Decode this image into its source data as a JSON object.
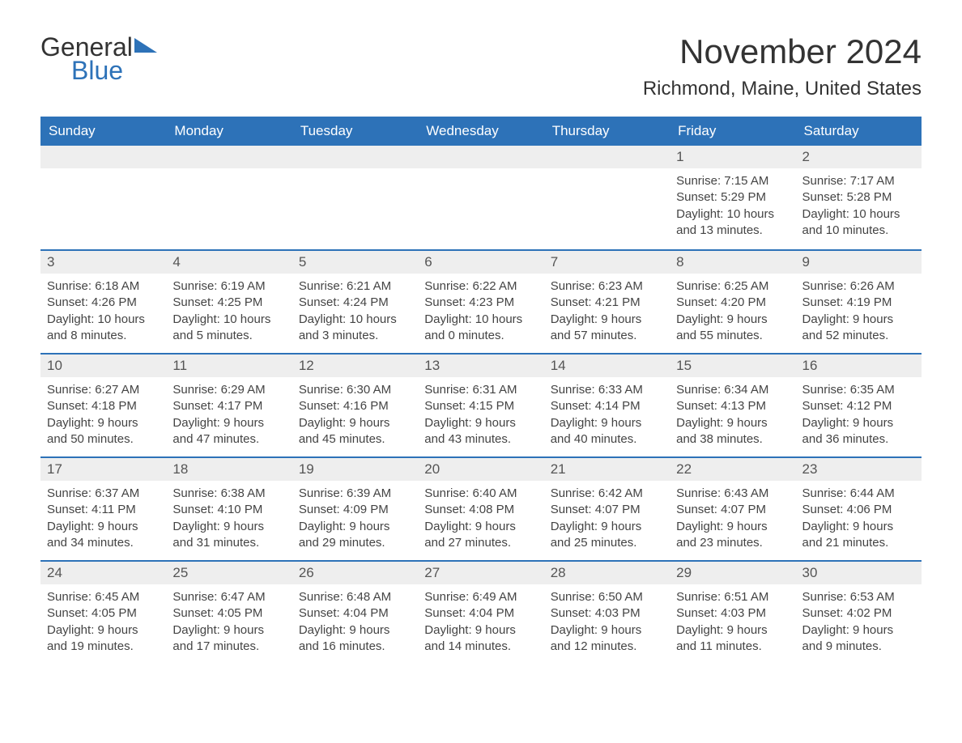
{
  "logo": {
    "text_general": "General",
    "text_blue": "Blue"
  },
  "title": "November 2024",
  "location": "Richmond, Maine, United States",
  "colors": {
    "header_bg": "#2d72b8",
    "header_text": "#ffffff",
    "day_number_bg": "#eeeeee",
    "border": "#2d72b8",
    "text": "#333333"
  },
  "day_headers": [
    "Sunday",
    "Monday",
    "Tuesday",
    "Wednesday",
    "Thursday",
    "Friday",
    "Saturday"
  ],
  "weeks": [
    [
      {
        "day": "",
        "sunrise": "",
        "sunset": "",
        "daylight1": "",
        "daylight2": ""
      },
      {
        "day": "",
        "sunrise": "",
        "sunset": "",
        "daylight1": "",
        "daylight2": ""
      },
      {
        "day": "",
        "sunrise": "",
        "sunset": "",
        "daylight1": "",
        "daylight2": ""
      },
      {
        "day": "",
        "sunrise": "",
        "sunset": "",
        "daylight1": "",
        "daylight2": ""
      },
      {
        "day": "",
        "sunrise": "",
        "sunset": "",
        "daylight1": "",
        "daylight2": ""
      },
      {
        "day": "1",
        "sunrise": "Sunrise: 7:15 AM",
        "sunset": "Sunset: 5:29 PM",
        "daylight1": "Daylight: 10 hours",
        "daylight2": "and 13 minutes."
      },
      {
        "day": "2",
        "sunrise": "Sunrise: 7:17 AM",
        "sunset": "Sunset: 5:28 PM",
        "daylight1": "Daylight: 10 hours",
        "daylight2": "and 10 minutes."
      }
    ],
    [
      {
        "day": "3",
        "sunrise": "Sunrise: 6:18 AM",
        "sunset": "Sunset: 4:26 PM",
        "daylight1": "Daylight: 10 hours",
        "daylight2": "and 8 minutes."
      },
      {
        "day": "4",
        "sunrise": "Sunrise: 6:19 AM",
        "sunset": "Sunset: 4:25 PM",
        "daylight1": "Daylight: 10 hours",
        "daylight2": "and 5 minutes."
      },
      {
        "day": "5",
        "sunrise": "Sunrise: 6:21 AM",
        "sunset": "Sunset: 4:24 PM",
        "daylight1": "Daylight: 10 hours",
        "daylight2": "and 3 minutes."
      },
      {
        "day": "6",
        "sunrise": "Sunrise: 6:22 AM",
        "sunset": "Sunset: 4:23 PM",
        "daylight1": "Daylight: 10 hours",
        "daylight2": "and 0 minutes."
      },
      {
        "day": "7",
        "sunrise": "Sunrise: 6:23 AM",
        "sunset": "Sunset: 4:21 PM",
        "daylight1": "Daylight: 9 hours",
        "daylight2": "and 57 minutes."
      },
      {
        "day": "8",
        "sunrise": "Sunrise: 6:25 AM",
        "sunset": "Sunset: 4:20 PM",
        "daylight1": "Daylight: 9 hours",
        "daylight2": "and 55 minutes."
      },
      {
        "day": "9",
        "sunrise": "Sunrise: 6:26 AM",
        "sunset": "Sunset: 4:19 PM",
        "daylight1": "Daylight: 9 hours",
        "daylight2": "and 52 minutes."
      }
    ],
    [
      {
        "day": "10",
        "sunrise": "Sunrise: 6:27 AM",
        "sunset": "Sunset: 4:18 PM",
        "daylight1": "Daylight: 9 hours",
        "daylight2": "and 50 minutes."
      },
      {
        "day": "11",
        "sunrise": "Sunrise: 6:29 AM",
        "sunset": "Sunset: 4:17 PM",
        "daylight1": "Daylight: 9 hours",
        "daylight2": "and 47 minutes."
      },
      {
        "day": "12",
        "sunrise": "Sunrise: 6:30 AM",
        "sunset": "Sunset: 4:16 PM",
        "daylight1": "Daylight: 9 hours",
        "daylight2": "and 45 minutes."
      },
      {
        "day": "13",
        "sunrise": "Sunrise: 6:31 AM",
        "sunset": "Sunset: 4:15 PM",
        "daylight1": "Daylight: 9 hours",
        "daylight2": "and 43 minutes."
      },
      {
        "day": "14",
        "sunrise": "Sunrise: 6:33 AM",
        "sunset": "Sunset: 4:14 PM",
        "daylight1": "Daylight: 9 hours",
        "daylight2": "and 40 minutes."
      },
      {
        "day": "15",
        "sunrise": "Sunrise: 6:34 AM",
        "sunset": "Sunset: 4:13 PM",
        "daylight1": "Daylight: 9 hours",
        "daylight2": "and 38 minutes."
      },
      {
        "day": "16",
        "sunrise": "Sunrise: 6:35 AM",
        "sunset": "Sunset: 4:12 PM",
        "daylight1": "Daylight: 9 hours",
        "daylight2": "and 36 minutes."
      }
    ],
    [
      {
        "day": "17",
        "sunrise": "Sunrise: 6:37 AM",
        "sunset": "Sunset: 4:11 PM",
        "daylight1": "Daylight: 9 hours",
        "daylight2": "and 34 minutes."
      },
      {
        "day": "18",
        "sunrise": "Sunrise: 6:38 AM",
        "sunset": "Sunset: 4:10 PM",
        "daylight1": "Daylight: 9 hours",
        "daylight2": "and 31 minutes."
      },
      {
        "day": "19",
        "sunrise": "Sunrise: 6:39 AM",
        "sunset": "Sunset: 4:09 PM",
        "daylight1": "Daylight: 9 hours",
        "daylight2": "and 29 minutes."
      },
      {
        "day": "20",
        "sunrise": "Sunrise: 6:40 AM",
        "sunset": "Sunset: 4:08 PM",
        "daylight1": "Daylight: 9 hours",
        "daylight2": "and 27 minutes."
      },
      {
        "day": "21",
        "sunrise": "Sunrise: 6:42 AM",
        "sunset": "Sunset: 4:07 PM",
        "daylight1": "Daylight: 9 hours",
        "daylight2": "and 25 minutes."
      },
      {
        "day": "22",
        "sunrise": "Sunrise: 6:43 AM",
        "sunset": "Sunset: 4:07 PM",
        "daylight1": "Daylight: 9 hours",
        "daylight2": "and 23 minutes."
      },
      {
        "day": "23",
        "sunrise": "Sunrise: 6:44 AM",
        "sunset": "Sunset: 4:06 PM",
        "daylight1": "Daylight: 9 hours",
        "daylight2": "and 21 minutes."
      }
    ],
    [
      {
        "day": "24",
        "sunrise": "Sunrise: 6:45 AM",
        "sunset": "Sunset: 4:05 PM",
        "daylight1": "Daylight: 9 hours",
        "daylight2": "and 19 minutes."
      },
      {
        "day": "25",
        "sunrise": "Sunrise: 6:47 AM",
        "sunset": "Sunset: 4:05 PM",
        "daylight1": "Daylight: 9 hours",
        "daylight2": "and 17 minutes."
      },
      {
        "day": "26",
        "sunrise": "Sunrise: 6:48 AM",
        "sunset": "Sunset: 4:04 PM",
        "daylight1": "Daylight: 9 hours",
        "daylight2": "and 16 minutes."
      },
      {
        "day": "27",
        "sunrise": "Sunrise: 6:49 AM",
        "sunset": "Sunset: 4:04 PM",
        "daylight1": "Daylight: 9 hours",
        "daylight2": "and 14 minutes."
      },
      {
        "day": "28",
        "sunrise": "Sunrise: 6:50 AM",
        "sunset": "Sunset: 4:03 PM",
        "daylight1": "Daylight: 9 hours",
        "daylight2": "and 12 minutes."
      },
      {
        "day": "29",
        "sunrise": "Sunrise: 6:51 AM",
        "sunset": "Sunset: 4:03 PM",
        "daylight1": "Daylight: 9 hours",
        "daylight2": "and 11 minutes."
      },
      {
        "day": "30",
        "sunrise": "Sunrise: 6:53 AM",
        "sunset": "Sunset: 4:02 PM",
        "daylight1": "Daylight: 9 hours",
        "daylight2": "and 9 minutes."
      }
    ]
  ]
}
